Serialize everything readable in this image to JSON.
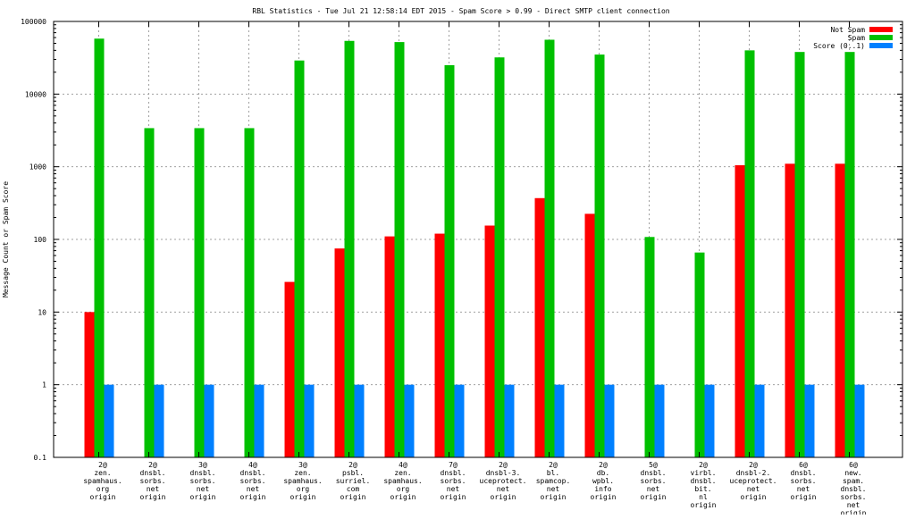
{
  "chart_data": {
    "type": "bar",
    "title": "RBL Statistics - Tue Jul 21 12:58:14 EDT 2015 - Spam Score > 0.99 - Direct SMTP client connection",
    "ylabel": "Message Count or Spam Score",
    "xlabel": "",
    "yscale": "log",
    "ylim": [
      0.1,
      100000
    ],
    "yticks": [
      "0.1",
      "1",
      "10",
      "100",
      "1000",
      "10000",
      "100000"
    ],
    "grid": true,
    "legend_position": "top-right",
    "categories": [
      [
        "2@",
        "zen.",
        "spamhaus.",
        "org",
        "origin"
      ],
      [
        "2@",
        "dnsbl.",
        "sorbs.",
        "net",
        "origin"
      ],
      [
        "3@",
        "dnsbl.",
        "sorbs.",
        "net",
        "origin"
      ],
      [
        "4@",
        "dnsbl.",
        "sorbs.",
        "net",
        "origin"
      ],
      [
        "3@",
        "zen.",
        "spamhaus.",
        "org",
        "origin"
      ],
      [
        "2@",
        "psbl.",
        "surriel.",
        "com",
        "origin"
      ],
      [
        "4@",
        "zen.",
        "spamhaus.",
        "org",
        "origin"
      ],
      [
        "7@",
        "dnsbl.",
        "sorbs.",
        "net",
        "origin"
      ],
      [
        "2@",
        "dnsbl-3.",
        "uceprotect.",
        "net",
        "origin"
      ],
      [
        "2@",
        "bl.",
        "spamcop.",
        "net",
        "origin"
      ],
      [
        "2@",
        "db.",
        "wpbl.",
        "info",
        "origin"
      ],
      [
        "5@",
        "dnsbl.",
        "sorbs.",
        "net",
        "origin"
      ],
      [
        "2@",
        "virbl.",
        "dnsbl.",
        "bit.",
        "nl",
        "origin"
      ],
      [
        "2@",
        "dnsbl-2.",
        "uceprotect.",
        "net",
        "origin"
      ],
      [
        "6@",
        "dnsbl.",
        "sorbs.",
        "net",
        "origin"
      ],
      [
        "6@",
        "new.",
        "spam.",
        "dnsbl.",
        "sorbs.",
        "net",
        "origin"
      ]
    ],
    "series": [
      {
        "name": "Not Spam",
        "color": "#ff0000",
        "values": [
          10,
          null,
          null,
          null,
          26,
          75,
          110,
          120,
          155,
          370,
          225,
          null,
          null,
          1050,
          1100,
          1100
        ]
      },
      {
        "name": "Spam",
        "color": "#00c000",
        "values": [
          58000,
          3400,
          3400,
          3400,
          29000,
          54000,
          52000,
          25000,
          32000,
          56000,
          35000,
          108,
          66,
          40000,
          38000,
          38000
        ]
      },
      {
        "name": "Score (0..1)",
        "color": "#0080ff",
        "values": [
          1,
          1,
          1,
          1,
          1,
          1,
          1,
          1,
          1,
          1,
          1,
          1,
          1,
          1,
          1,
          1
        ]
      }
    ]
  }
}
